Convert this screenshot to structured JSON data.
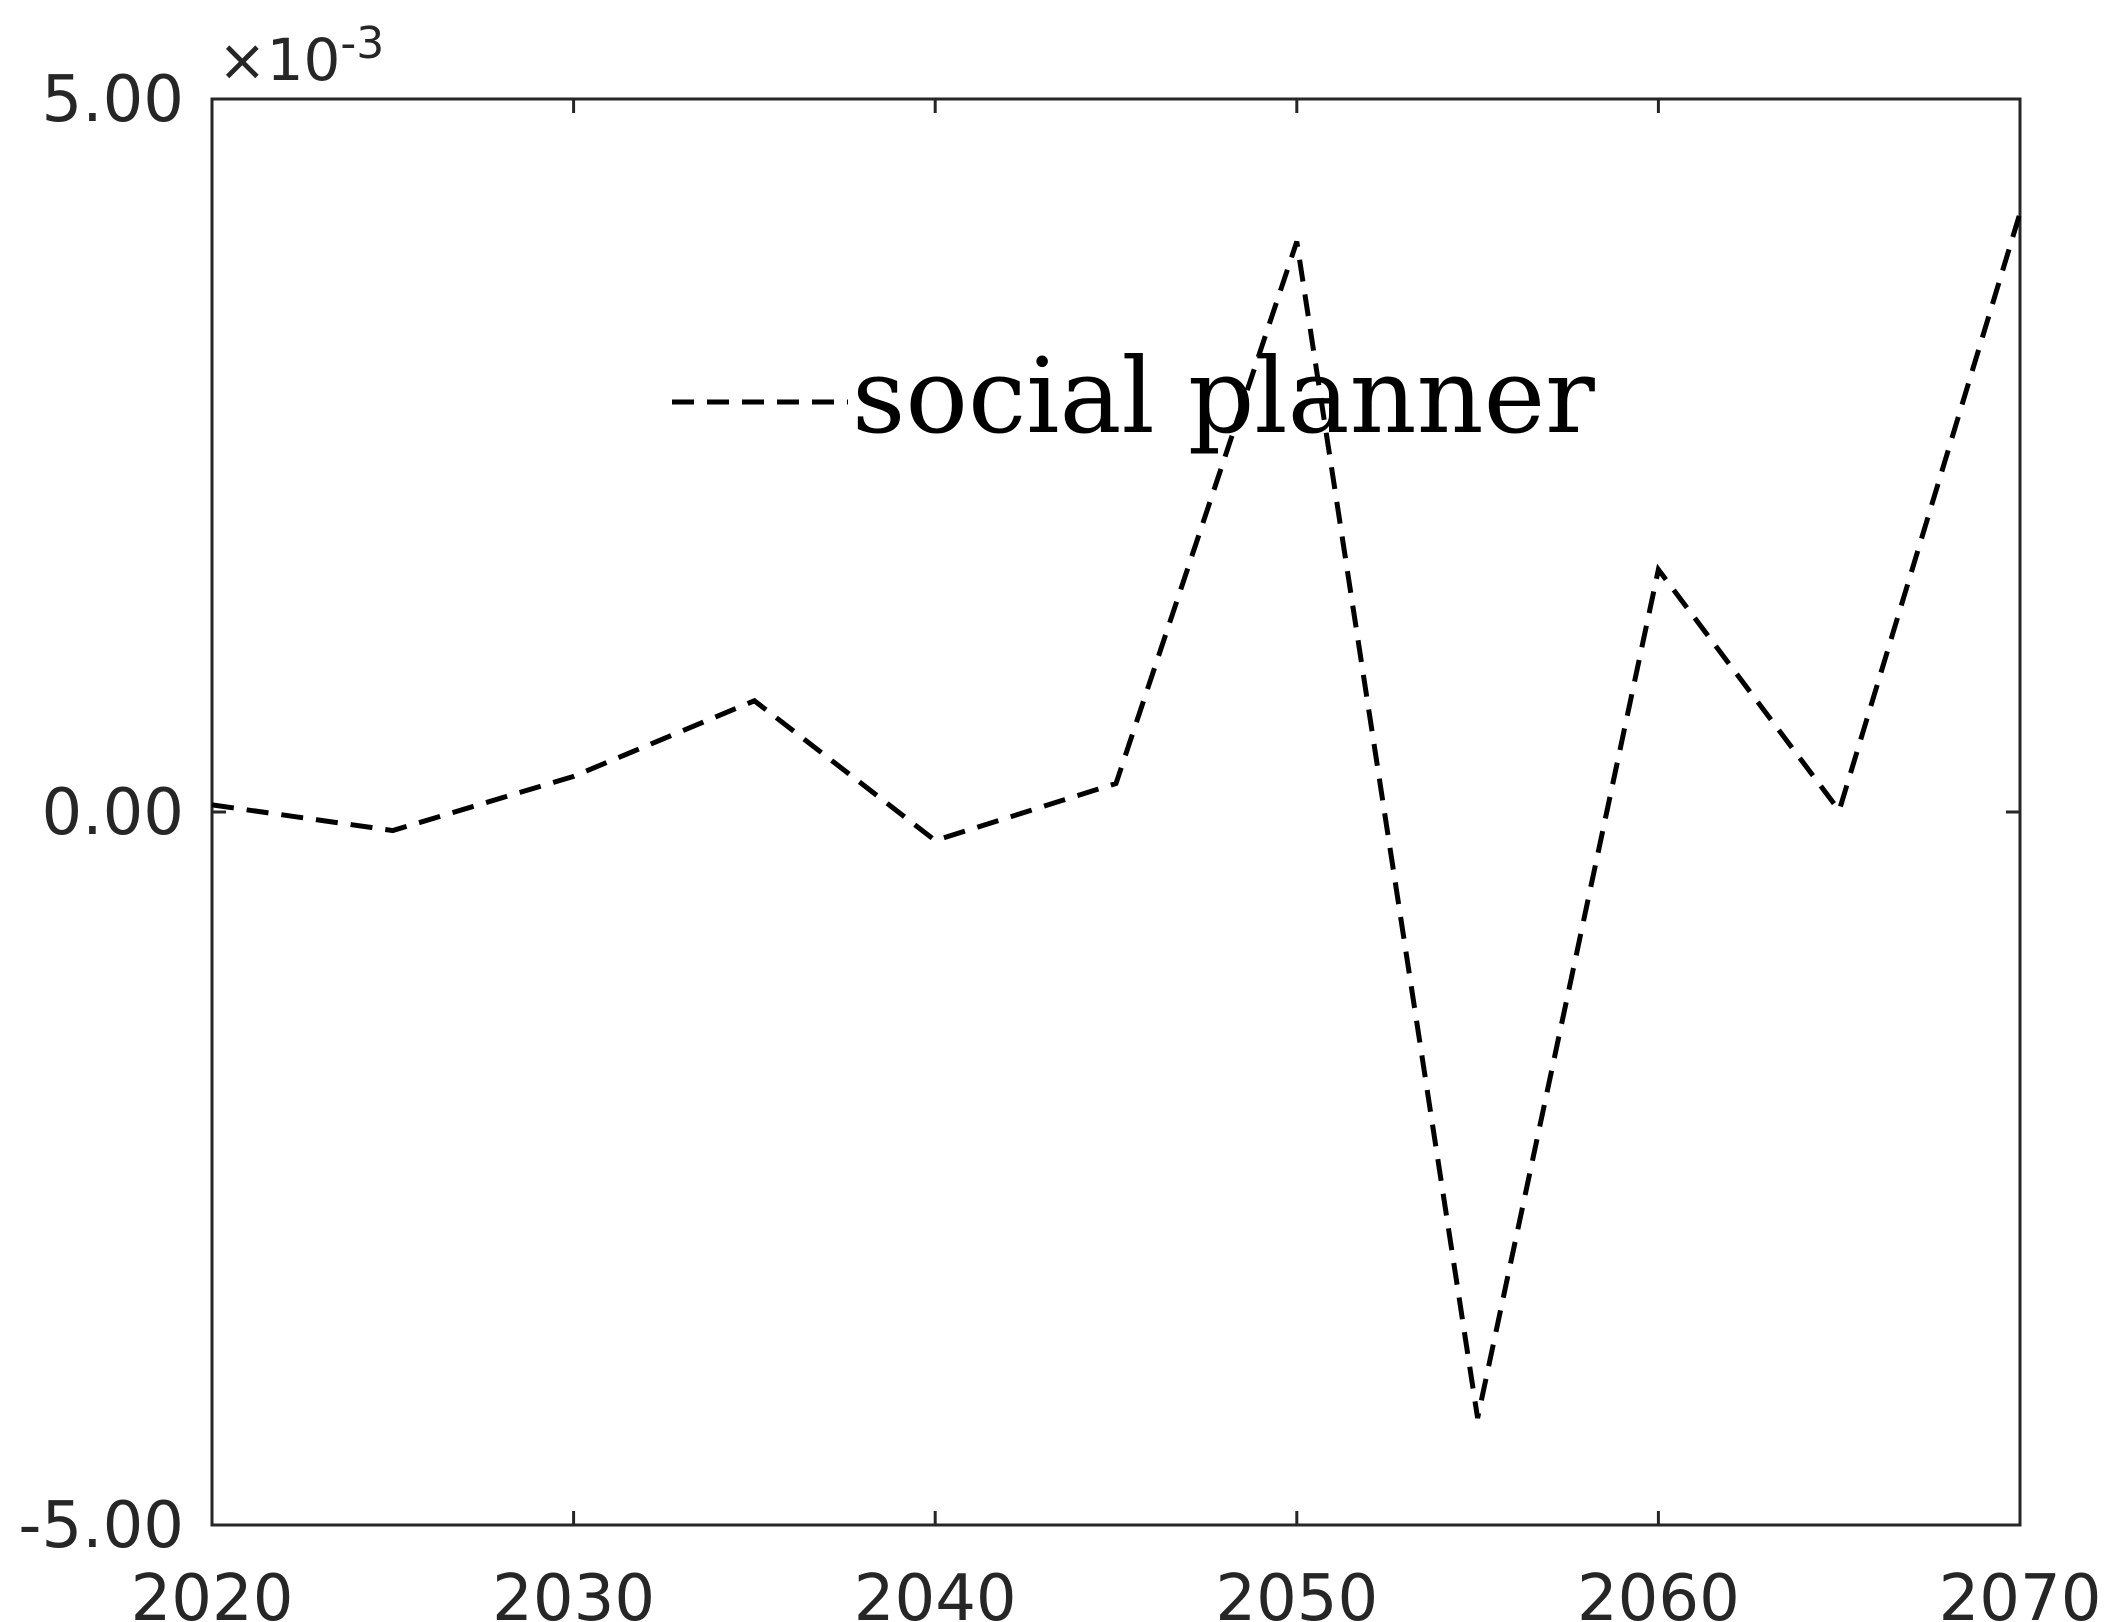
{
  "chart_data": {
    "type": "line",
    "title": "",
    "xlabel": "",
    "ylabel": "",
    "x": [
      2020,
      2025,
      2030,
      2035,
      2040,
      2045,
      2050,
      2055,
      2060,
      2065,
      2070
    ],
    "series": [
      {
        "name": "social planner",
        "line_style": "dashed",
        "color": "#000000",
        "values": [
          5e-05,
          -0.00013,
          0.00025,
          0.00078,
          -0.0002,
          0.0002,
          0.004,
          -0.00425,
          0.0017,
          1e-05,
          0.0042
        ]
      }
    ],
    "xlim": [
      2020,
      2070
    ],
    "ylim": [
      -0.005,
      0.005
    ],
    "x_ticks": [
      2020,
      2030,
      2040,
      2050,
      2060,
      2070
    ],
    "x_tick_labels": [
      "2020",
      "2030",
      "2040",
      "2050",
      "2060",
      "2070"
    ],
    "y_ticks": [
      0.005,
      0,
      -0.005
    ],
    "y_tick_labels": [
      "5.00",
      "0.00",
      "-5.00"
    ],
    "y_exponent": {
      "base": "×10",
      "power": "-3"
    },
    "grid": false,
    "legend_position": "top-center"
  }
}
